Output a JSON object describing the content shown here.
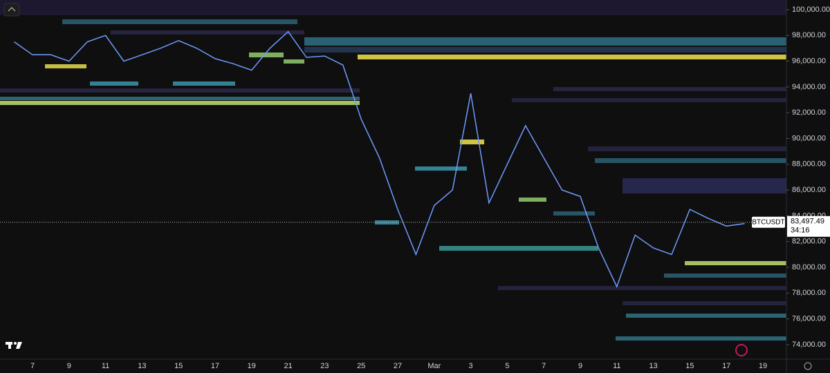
{
  "chart_data": {
    "type": "line",
    "categories": [
      null,
      "7",
      null,
      "9",
      null,
      "11",
      null,
      "13",
      null,
      "15",
      null,
      "17",
      null,
      "19",
      null,
      "21",
      null,
      "23",
      null,
      "25",
      null,
      "27",
      null,
      "Mar",
      null,
      "3",
      null,
      "5",
      null,
      "7",
      null,
      "9",
      null,
      "11",
      null,
      "13",
      null,
      "15",
      null,
      "17",
      null,
      "19",
      null
    ],
    "series": [
      {
        "name": "BTCUSDT",
        "color": "#6f9bff",
        "values": [
          97500,
          96500,
          96500,
          96000,
          97500,
          98000,
          96000,
          96500,
          97000,
          97600,
          97000,
          96200,
          95800,
          95300,
          97000,
          98300,
          96300,
          96400,
          95700,
          91500,
          88500,
          84500,
          81000,
          84800,
          86000,
          93500,
          85000,
          88000,
          91000,
          88500,
          86000,
          85500,
          81500,
          78500,
          82500,
          81500,
          81000,
          84500,
          83800,
          83200,
          83400,
          null,
          null
        ]
      }
    ],
    "ylim": [
      72870,
      100750
    ],
    "yticks": [
      {
        "value": 74000,
        "label": "74,000.00"
      },
      {
        "value": 76000,
        "label": "76,000.00"
      },
      {
        "value": 78000,
        "label": "78,000.00"
      },
      {
        "value": 80000,
        "label": "80,000.00"
      },
      {
        "value": 82000,
        "label": "82,000.00"
      },
      {
        "value": 84000,
        "label": "84,000.00"
      },
      {
        "value": 86000,
        "label": "86,000.00"
      },
      {
        "value": 88000,
        "label": "88,000.00"
      },
      {
        "value": 90000,
        "label": "90,000.00"
      },
      {
        "value": 92000,
        "label": "92,000.00"
      },
      {
        "value": 94000,
        "label": "94,000.00"
      },
      {
        "value": 96000,
        "label": "96,000.00"
      },
      {
        "value": 98000,
        "label": "98,000.00"
      },
      {
        "value": 100000,
        "label": "100,000.00"
      }
    ],
    "current_price": {
      "value": 83497.49,
      "label": "83,497.49"
    },
    "countdown": "34:16"
  }
}
